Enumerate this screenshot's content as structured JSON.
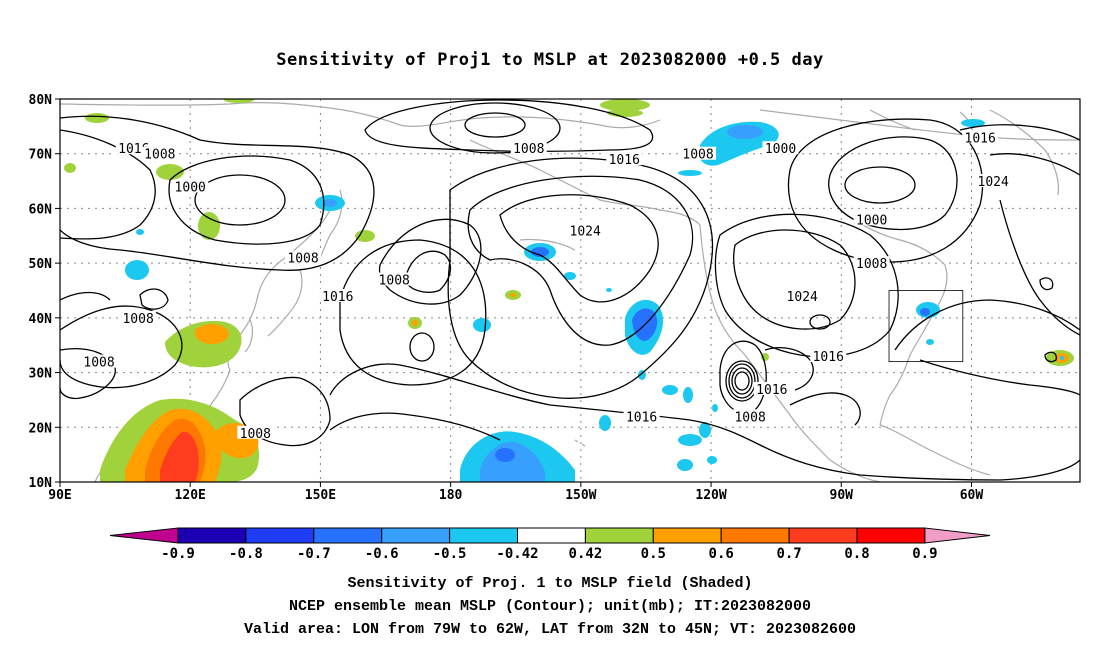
{
  "title": "Sensitivity of Proj1 to MSLP at 2023082000 +0.5 day",
  "footer": {
    "line1": "Sensitivity of Proj. 1 to MSLP field (Shaded)",
    "line2": "NCEP ensemble mean MSLP (Contour); unit(mb); IT:2023082000",
    "line3": "Valid area: LON from 79W to 62W, LAT from 32N to 45N; VT: 2023082600"
  },
  "axes": {
    "lat_ticks": [
      "80N",
      "70N",
      "60N",
      "50N",
      "40N",
      "30N",
      "20N",
      "10N"
    ],
    "lon_ticks": [
      "90E",
      "120E",
      "150E",
      "180",
      "150W",
      "120W",
      "90W",
      "60W"
    ]
  },
  "colorbar": {
    "labels": [
      "-0.9",
      "-0.8",
      "-0.7",
      "-0.6",
      "-0.5",
      "-0.42",
      "0.42",
      "0.5",
      "0.6",
      "0.7",
      "0.8",
      "0.9"
    ],
    "colors": [
      "#c0008f",
      "#1c00b4",
      "#1f3cf5",
      "#2672ff",
      "#37a0ff",
      "#1cc8f0",
      "#ffffff",
      "#a0d23c",
      "#ffa000",
      "#ff7800",
      "#ff3c1e",
      "#ff0000",
      "#f09ec8"
    ]
  },
  "contour_labels": [
    {
      "text": "1016",
      "lon": 107,
      "lat": 71
    },
    {
      "text": "1008",
      "lon": 113,
      "lat": 70
    },
    {
      "text": "1000",
      "lon": 120,
      "lat": 64
    },
    {
      "text": "1008",
      "lon": 146,
      "lat": 51
    },
    {
      "text": "1016",
      "lon": 154,
      "lat": 44
    },
    {
      "text": "1008",
      "lon": 167,
      "lat": 47
    },
    {
      "text": "1008",
      "lon": 198,
      "lat": 71
    },
    {
      "text": "1016",
      "lon": 220,
      "lat": 69
    },
    {
      "text": "1024",
      "lon": 211,
      "lat": 56
    },
    {
      "text": "1008",
      "lon": 237,
      "lat": 70
    },
    {
      "text": "1000",
      "lon": 256,
      "lat": 71
    },
    {
      "text": "1000",
      "lon": 277,
      "lat": 58
    },
    {
      "text": "1008",
      "lon": 277,
      "lat": 50
    },
    {
      "text": "1024",
      "lon": 261,
      "lat": 44
    },
    {
      "text": "1016",
      "lon": 302,
      "lat": 73
    },
    {
      "text": "1024",
      "lon": 305,
      "lat": 65
    },
    {
      "text": "1008",
      "lon": 108,
      "lat": 40
    },
    {
      "text": "1008",
      "lon": 99,
      "lat": 32
    },
    {
      "text": "1008",
      "lon": 135,
      "lat": 19
    },
    {
      "text": "1016",
      "lon": 224,
      "lat": 22
    },
    {
      "text": "1008",
      "lon": 249,
      "lat": 22
    },
    {
      "text": "1016",
      "lon": 254,
      "lat": 27
    },
    {
      "text": "1016",
      "lon": 267,
      "lat": 33
    }
  ],
  "valid_area": {
    "lon_min": 281,
    "lon_max": 298,
    "lat_min": 32,
    "lat_max": 45
  }
}
